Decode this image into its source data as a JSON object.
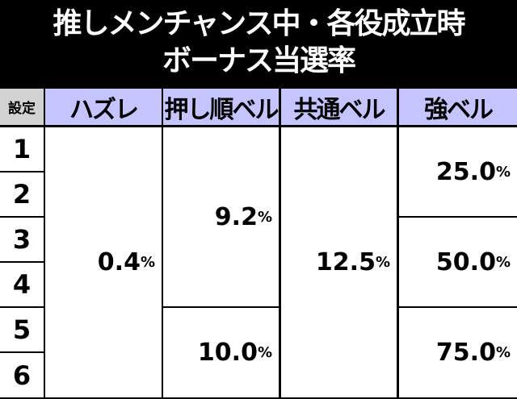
{
  "title": {
    "line1": "推しメンチャンス中・各役成立時",
    "line2": "ボーナス当選率"
  },
  "table": {
    "headers": [
      "設定",
      "ハズレ",
      "押し順ベル",
      "共通ベル",
      "強ベル"
    ],
    "settings": [
      "1",
      "2",
      "3",
      "4",
      "5",
      "6"
    ],
    "hazure": {
      "settings_1_6": "0.4"
    },
    "oshijun_bell": {
      "settings_1_4": "9.2",
      "settings_5_6": "10.0"
    },
    "kyotsu_bell": {
      "settings_1_6": "12.5"
    },
    "kyo_bell": {
      "settings_1_2": "25.0",
      "settings_3_4": "50.0",
      "settings_5_6": "75.0"
    },
    "unit": "%"
  }
}
